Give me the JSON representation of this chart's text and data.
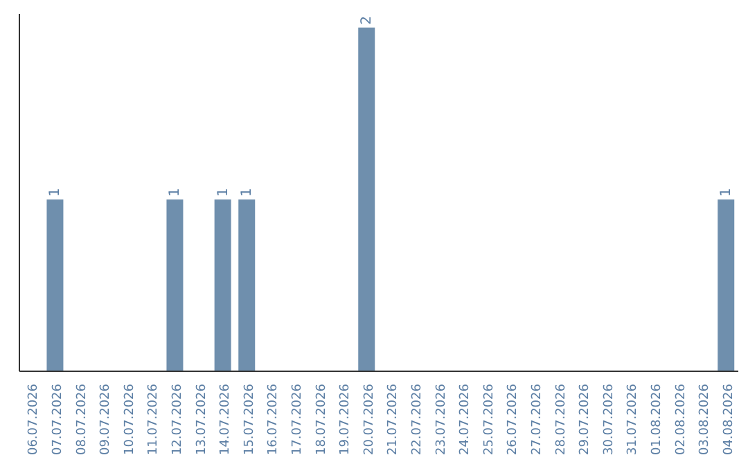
{
  "chart_data": {
    "type": "bar",
    "categories": [
      "06.07.2026",
      "07.07.2026",
      "08.07.2026",
      "09.07.2026",
      "10.07.2026",
      "11.07.2026",
      "12.07.2026",
      "13.07.2026",
      "14.07.2026",
      "15.07.2026",
      "16.07.2026",
      "17.07.2026",
      "18.07.2026",
      "19.07.2026",
      "20.07.2026",
      "21.07.2026",
      "22.07.2026",
      "23.07.2026",
      "24.07.2026",
      "25.07.2026",
      "26.07.2026",
      "27.07.2026",
      "28.07.2026",
      "29.07.2026",
      "30.07.2026",
      "31.07.2026",
      "01.08.2026",
      "02.08.2026",
      "03.08.2026",
      "04.08.2026"
    ],
    "values": [
      0,
      1,
      0,
      0,
      0,
      0,
      1,
      0,
      1,
      1,
      0,
      0,
      0,
      0,
      2,
      0,
      0,
      0,
      0,
      0,
      0,
      0,
      0,
      0,
      0,
      0,
      0,
      0,
      0,
      1
    ],
    "color": "#6f8fad",
    "value_labels": [
      null,
      "1",
      null,
      null,
      null,
      null,
      "1",
      null,
      "1",
      "1",
      null,
      null,
      null,
      null,
      "2",
      null,
      null,
      null,
      null,
      null,
      null,
      null,
      null,
      null,
      null,
      null,
      null,
      null,
      null,
      "1"
    ],
    "tick_labels": "x",
    "grid": false,
    "legend": false
  }
}
